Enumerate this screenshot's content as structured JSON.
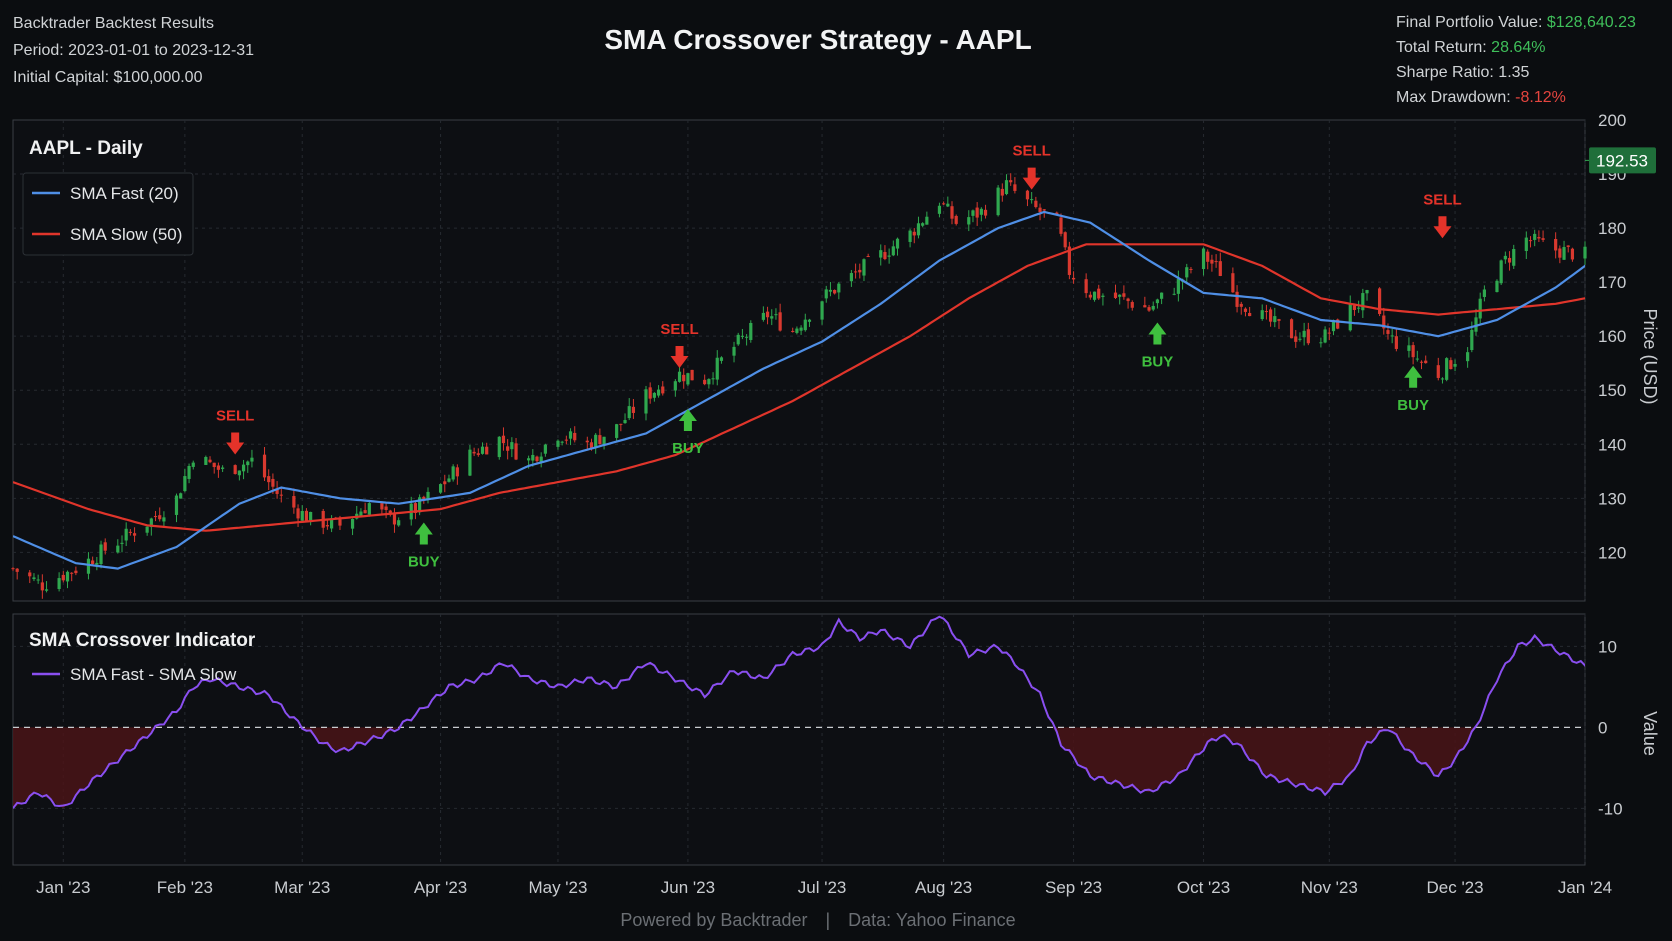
{
  "header": {
    "app_name": "Backtrader Backtest Results",
    "period_label": "Period:",
    "period_value": "2023-01-01 to 2023-12-31",
    "capital_label": "Initial Capital:",
    "capital_value": "$100,000.00",
    "final_label": "Final Portfolio Value:",
    "final_value": "$128,640.23",
    "return_label": "Total Return:",
    "return_value": "28.64%",
    "sharpe_label": "Sharpe Ratio:",
    "sharpe_value": "1.35",
    "drawdown_label": "Max Drawdown:",
    "drawdown_value": "-8.12%"
  },
  "title": "SMA Crossover Strategy - AAPL",
  "footer": {
    "left": "Powered by Backtrader",
    "sep": "|",
    "right": "Data: Yahoo Finance"
  },
  "colors": {
    "background": "#0b0d10",
    "bull": "#2fa84f",
    "bear": "#d9392f",
    "sma_fast": "#4f8fe6",
    "sma_slow": "#e0352b",
    "indicator": "#8a4ff0",
    "buy": "#3fbf3f",
    "sell": "#e5332a",
    "last_price_badge": "#1f6f3a"
  },
  "chart_data": [
    {
      "type": "candlestick",
      "panel_title": "AAPL - Daily",
      "ylabel": "Price (USD)",
      "ylim": [
        111,
        200
      ],
      "yticks": [
        120,
        130,
        140,
        150,
        160,
        170,
        180,
        190,
        200
      ],
      "grid": true,
      "legend_position": "top-left",
      "last_price": "192.53",
      "x_range": [
        "2022-12-22",
        "2024-01-01"
      ],
      "x_tick_labels": [
        {
          "date": "2023-01-03",
          "label": "Jan '23"
        },
        {
          "date": "2023-02-01",
          "label": "Feb '23"
        },
        {
          "date": "2023-03-01",
          "label": "Mar '23"
        },
        {
          "date": "2023-04-03",
          "label": "Apr '23"
        },
        {
          "date": "2023-05-01",
          "label": "May '23"
        },
        {
          "date": "2023-06-01",
          "label": "Jun '23"
        },
        {
          "date": "2023-07-03",
          "label": "Jul '23"
        },
        {
          "date": "2023-08-01",
          "label": "Aug '23"
        },
        {
          "date": "2023-09-01",
          "label": "Sep '23"
        },
        {
          "date": "2023-10-02",
          "label": "Oct '23"
        },
        {
          "date": "2023-11-01",
          "label": "Nov '23"
        },
        {
          "date": "2023-12-01",
          "label": "Dec '23"
        },
        {
          "date": "2024-01-01",
          "label": "Jan '24"
        }
      ],
      "close_anchors": [
        [
          "2022-12-22",
          117
        ],
        [
          "2022-12-29",
          114
        ],
        [
          "2023-01-06",
          117
        ],
        [
          "2023-01-16",
          122
        ],
        [
          "2023-01-24",
          126
        ],
        [
          "2023-01-30",
          130
        ],
        [
          "2023-02-03",
          138
        ],
        [
          "2023-02-10",
          135
        ],
        [
          "2023-02-17",
          137
        ],
        [
          "2023-02-24",
          130
        ],
        [
          "2023-03-03",
          126
        ],
        [
          "2023-03-10",
          125
        ],
        [
          "2023-03-17",
          129
        ],
        [
          "2023-03-22",
          126
        ],
        [
          "2023-03-28",
          128
        ],
        [
          "2023-04-04",
          133
        ],
        [
          "2023-04-10",
          138
        ],
        [
          "2023-04-17",
          141
        ],
        [
          "2023-04-24",
          137
        ],
        [
          "2023-05-01",
          142
        ],
        [
          "2023-05-08",
          140
        ],
        [
          "2023-05-15",
          143
        ],
        [
          "2023-05-22",
          149
        ],
        [
          "2023-05-30",
          153
        ],
        [
          "2023-06-05",
          152
        ],
        [
          "2023-06-12",
          158
        ],
        [
          "2023-06-20",
          164
        ],
        [
          "2023-06-26",
          161
        ],
        [
          "2023-07-03",
          167
        ],
        [
          "2023-07-10",
          171
        ],
        [
          "2023-07-17",
          175
        ],
        [
          "2023-07-24",
          179
        ],
        [
          "2023-07-31",
          185
        ],
        [
          "2023-08-04",
          181
        ],
        [
          "2023-08-10",
          183
        ],
        [
          "2023-08-16",
          188
        ],
        [
          "2023-08-22",
          184
        ],
        [
          "2023-08-28",
          181
        ],
        [
          "2023-08-31",
          172
        ],
        [
          "2023-09-05",
          168
        ],
        [
          "2023-09-12",
          167
        ],
        [
          "2023-09-19",
          165
        ],
        [
          "2023-09-25",
          169
        ],
        [
          "2023-10-02",
          175
        ],
        [
          "2023-10-06",
          172
        ],
        [
          "2023-10-10",
          167
        ],
        [
          "2023-10-17",
          163
        ],
        [
          "2023-10-24",
          160
        ],
        [
          "2023-10-31",
          160
        ],
        [
          "2023-11-06",
          165
        ],
        [
          "2023-11-10",
          167
        ],
        [
          "2023-11-15",
          160
        ],
        [
          "2023-11-20",
          157
        ],
        [
          "2023-11-27",
          153
        ],
        [
          "2023-12-04",
          158
        ],
        [
          "2023-12-08",
          168
        ],
        [
          "2023-12-13",
          174
        ],
        [
          "2023-12-18",
          178
        ],
        [
          "2023-12-25",
          176
        ],
        [
          "2024-01-01",
          175
        ]
      ],
      "sma_fast_anchors": [
        [
          "2022-12-22",
          123
        ],
        [
          "2023-01-06",
          118
        ],
        [
          "2023-01-16",
          117
        ],
        [
          "2023-01-30",
          121
        ],
        [
          "2023-02-14",
          129
        ],
        [
          "2023-02-24",
          132
        ],
        [
          "2023-03-10",
          130
        ],
        [
          "2023-03-24",
          129
        ],
        [
          "2023-04-10",
          131
        ],
        [
          "2023-04-24",
          136
        ],
        [
          "2023-05-08",
          139
        ],
        [
          "2023-05-22",
          142
        ],
        [
          "2023-06-05",
          148
        ],
        [
          "2023-06-19",
          154
        ],
        [
          "2023-07-03",
          159
        ],
        [
          "2023-07-17",
          166
        ],
        [
          "2023-07-31",
          174
        ],
        [
          "2023-08-14",
          180
        ],
        [
          "2023-08-25",
          183
        ],
        [
          "2023-09-05",
          181
        ],
        [
          "2023-09-19",
          174
        ],
        [
          "2023-10-02",
          168
        ],
        [
          "2023-10-16",
          167
        ],
        [
          "2023-10-30",
          163
        ],
        [
          "2023-11-13",
          162
        ],
        [
          "2023-11-27",
          160
        ],
        [
          "2023-12-11",
          163
        ],
        [
          "2023-12-25",
          169
        ],
        [
          "2024-01-08",
          177
        ],
        [
          "2024-01-17",
          181
        ]
      ],
      "sma_slow_anchors": [
        [
          "2022-12-22",
          133
        ],
        [
          "2023-01-09",
          128
        ],
        [
          "2023-01-23",
          125
        ],
        [
          "2023-02-06",
          124
        ],
        [
          "2023-02-20",
          125
        ],
        [
          "2023-03-06",
          126
        ],
        [
          "2023-03-20",
          127
        ],
        [
          "2023-04-03",
          128
        ],
        [
          "2023-04-17",
          131
        ],
        [
          "2023-05-01",
          133
        ],
        [
          "2023-05-15",
          135
        ],
        [
          "2023-05-29",
          138
        ],
        [
          "2023-06-12",
          143
        ],
        [
          "2023-06-26",
          148
        ],
        [
          "2023-07-10",
          154
        ],
        [
          "2023-07-24",
          160
        ],
        [
          "2023-08-07",
          167
        ],
        [
          "2023-08-21",
          173
        ],
        [
          "2023-09-04",
          177
        ],
        [
          "2023-09-18",
          177
        ],
        [
          "2023-10-02",
          177
        ],
        [
          "2023-10-16",
          173
        ],
        [
          "2023-10-30",
          167
        ],
        [
          "2023-11-13",
          165
        ],
        [
          "2023-11-27",
          164
        ],
        [
          "2023-12-11",
          165
        ],
        [
          "2023-12-25",
          166
        ],
        [
          "2024-01-08",
          168
        ],
        [
          "2024-01-17",
          170
        ]
      ],
      "signals": [
        {
          "type": "SELL",
          "label": "SELL",
          "date": "2023-02-13",
          "price": 137
        },
        {
          "type": "BUY",
          "label": "BUY",
          "date": "2023-03-30",
          "price": 127
        },
        {
          "type": "SELL",
          "label": "SELL",
          "date": "2023-05-30",
          "price": 153
        },
        {
          "type": "BUY",
          "label": "BUY",
          "date": "2023-06-01",
          "price": 148
        },
        {
          "type": "SELL",
          "label": "SELL",
          "date": "2023-08-22",
          "price": 186
        },
        {
          "type": "BUY",
          "label": "BUY",
          "date": "2023-09-21",
          "price": 164
        },
        {
          "type": "SELL",
          "label": "SELL",
          "date": "2023-11-28",
          "price": 177
        },
        {
          "type": "BUY",
          "label": "BUY",
          "date": "2023-11-21",
          "price": 156
        }
      ],
      "legend": [
        {
          "name": "SMA Fast (20)",
          "color_key": "sma_fast"
        },
        {
          "name": "SMA Slow (50)",
          "color_key": "sma_slow"
        }
      ]
    },
    {
      "type": "area",
      "panel_title": "SMA Crossover Indicator",
      "ylabel": "Value",
      "ylim": [
        -17,
        14
      ],
      "yticks": [
        -10,
        0,
        10
      ],
      "zero_line": "dashed",
      "legend_position": "top-left",
      "series": [
        {
          "name": "SMA Fast - SMA Slow",
          "anchors": [
            [
              "2022-12-22",
              -10
            ],
            [
              "2022-12-28",
              -8
            ],
            [
              "2023-01-03",
              -10
            ],
            [
              "2023-01-09",
              -7
            ],
            [
              "2023-01-16",
              -4
            ],
            [
              "2023-01-23",
              -1
            ],
            [
              "2023-01-30",
              2
            ],
            [
              "2023-02-03",
              5
            ],
            [
              "2023-02-07",
              6
            ],
            [
              "2023-02-14",
              5
            ],
            [
              "2023-02-21",
              4
            ],
            [
              "2023-02-27",
              1
            ],
            [
              "2023-03-06",
              -2
            ],
            [
              "2023-03-10",
              -3
            ],
            [
              "2023-03-15",
              -2
            ],
            [
              "2023-03-20",
              -1
            ],
            [
              "2023-03-24",
              0
            ],
            [
              "2023-03-29",
              2
            ],
            [
              "2023-04-05",
              5
            ],
            [
              "2023-04-12",
              6
            ],
            [
              "2023-04-18",
              8
            ],
            [
              "2023-04-24",
              6
            ],
            [
              "2023-05-01",
              5
            ],
            [
              "2023-05-08",
              6
            ],
            [
              "2023-05-15",
              5
            ],
            [
              "2023-05-22",
              8
            ],
            [
              "2023-05-29",
              6
            ],
            [
              "2023-06-05",
              4
            ],
            [
              "2023-06-12",
              7
            ],
            [
              "2023-06-19",
              6
            ],
            [
              "2023-06-26",
              9
            ],
            [
              "2023-07-03",
              10
            ],
            [
              "2023-07-07",
              13
            ],
            [
              "2023-07-12",
              11
            ],
            [
              "2023-07-17",
              12
            ],
            [
              "2023-07-24",
              10
            ],
            [
              "2023-07-31",
              14
            ],
            [
              "2023-08-07",
              9
            ],
            [
              "2023-08-14",
              10
            ],
            [
              "2023-08-18",
              8
            ],
            [
              "2023-08-24",
              4
            ],
            [
              "2023-08-29",
              -2
            ],
            [
              "2023-09-05",
              -6
            ],
            [
              "2023-09-12",
              -7
            ],
            [
              "2023-09-19",
              -8
            ],
            [
              "2023-09-26",
              -6
            ],
            [
              "2023-10-03",
              -2
            ],
            [
              "2023-10-06",
              -1
            ],
            [
              "2023-10-10",
              -2
            ],
            [
              "2023-10-17",
              -6
            ],
            [
              "2023-10-24",
              -7
            ],
            [
              "2023-10-31",
              -8
            ],
            [
              "2023-11-06",
              -6
            ],
            [
              "2023-11-10",
              -2
            ],
            [
              "2023-11-15",
              0
            ],
            [
              "2023-11-20",
              -3
            ],
            [
              "2023-11-27",
              -6
            ],
            [
              "2023-12-01",
              -4
            ],
            [
              "2023-12-06",
              0
            ],
            [
              "2023-12-11",
              6
            ],
            [
              "2023-12-16",
              10
            ],
            [
              "2023-12-20",
              11
            ],
            [
              "2023-12-27",
              9
            ],
            [
              "2024-01-03",
              7
            ],
            [
              "2024-01-08",
              8
            ],
            [
              "2024-01-13",
              9
            ],
            [
              "2024-01-17",
              8
            ]
          ]
        }
      ]
    }
  ]
}
